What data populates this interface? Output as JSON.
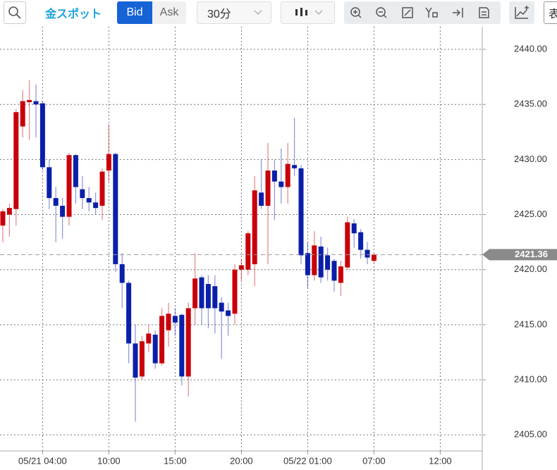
{
  "toolbar": {
    "instrument": "金スポット",
    "bid": "Bid",
    "ask": "Ask",
    "interval": "30分",
    "cut_button": "表"
  },
  "chart_data": {
    "type": "candlestick",
    "categories": [
      null,
      null,
      null,
      null,
      null,
      null,
      "05/21 04:00",
      null,
      null,
      null,
      null,
      null,
      null,
      null,
      null,
      null,
      "10:00",
      null,
      null,
      null,
      null,
      null,
      null,
      null,
      null,
      null,
      "15:00",
      null,
      null,
      null,
      null,
      null,
      null,
      null,
      null,
      null,
      "20:00",
      null,
      null,
      null,
      null,
      null,
      null,
      null,
      null,
      null,
      "05/22 01:00",
      null,
      null,
      null,
      null,
      null,
      null,
      null,
      null,
      null,
      "07:00",
      null,
      null,
      null,
      null,
      null,
      null,
      null,
      null,
      null,
      "12:00"
    ],
    "open": [
      2424,
      2425.0,
      2425.5,
      2433,
      2435.2,
      2435.3,
      2435.1,
      2429.3,
      2426.5,
      2425.8,
      2424.8,
      2430.4,
      2427.3,
      2426.5,
      2426.1,
      2425.8,
      2429,
      2430.5,
      2420.5,
      2418.8,
      2413.3,
      2410.3,
      2413.3,
      2414.1,
      2411.5,
      2414.5,
      2415.8,
      2415.9,
      2410.3,
      2416.5,
      2419.3,
      2418.7,
      2418.5,
      2417,
      2416.3,
      2416,
      2420,
      2420,
      2420.5,
      2427,
      2425.8,
      2429,
      2428,
      2427.5,
      2429.5,
      2429.2,
      2421.5,
      2419.5,
      2422.1,
      2421.3,
      2420.8,
      2418.8,
      2420.2,
      2424.2,
      2423.4,
      2421.8,
      2420.8,
      null,
      null,
      null,
      null,
      null,
      null,
      null,
      null,
      null,
      null
    ],
    "high": [
      2425.5,
      2426,
      2434.6,
      2436.3,
      2437.2,
      2436.8,
      2435.3,
      2430,
      2427.5,
      2426.5,
      2430.6,
      2430.5,
      2428.5,
      2427.5,
      2427,
      2429.2,
      2433.2,
      2430.6,
      2421.5,
      2419,
      2415,
      2414,
      2415,
      2414.5,
      2416.5,
      2417,
      2416.5,
      2416,
      2417,
      2421.5,
      2419.5,
      2419.5,
      2419.5,
      2417.5,
      2417,
      2420.5,
      2421,
      2423.5,
      2428.5,
      2430,
      2431.5,
      2430,
      2431,
      2431.5,
      2433.8,
      2429.5,
      2422.5,
      2423.5,
      2423,
      2422,
      2421,
      2420.8,
      2424.8,
      2424.6,
      2423.7,
      2422.5,
      2421.5,
      null,
      null,
      null,
      null,
      null,
      null,
      null,
      null,
      null,
      null
    ],
    "low": [
      2422.5,
      2423,
      2424,
      2432,
      2431.8,
      2432,
      2429,
      2425.5,
      2422.5,
      2422.8,
      2424,
      2426,
      2425.5,
      2425.3,
      2425,
      2424.5,
      2428,
      2419.8,
      2416.5,
      2411.5,
      2406.2,
      2410,
      2412.5,
      2411,
      2411.3,
      2413,
      2414,
      2409.5,
      2408.5,
      2415,
      2415,
      2414.7,
      2414.2,
      2411.9,
      2414,
      2415,
      2419,
      2419.5,
      2418.5,
      2425.5,
      2420.5,
      2424.5,
      2426,
      2426,
      2428.5,
      2420.5,
      2418.3,
      2419,
      2418.8,
      2419,
      2418,
      2417.6,
      2420,
      2422,
      2421,
      2420.5,
      2420.6,
      null,
      null,
      null,
      null,
      null,
      null,
      null,
      null,
      null,
      null
    ],
    "close": [
      2425.3,
      2425.6,
      2434.3,
      2435.3,
      2435.4,
      2435.0,
      2429.3,
      2426.5,
      2425.8,
      2424.8,
      2430.4,
      2427.5,
      2426.5,
      2426.1,
      2425.6,
      2428.9,
      2430.5,
      2420.5,
      2418.8,
      2413.3,
      2410.2,
      2413.5,
      2414.2,
      2411.5,
      2415.8,
      2416,
      2415.2,
      2410.3,
      2416.5,
      2419.2,
      2416.5,
      2416.5,
      2416.5,
      2416.2,
      2415.8,
      2420,
      2420.4,
      2423.3,
      2427.2,
      2425.8,
      2429,
      2428,
      2427.5,
      2429.6,
      2429.2,
      2421.3,
      2419.5,
      2422.2,
      2419.3,
      2420,
      2419,
      2420.3,
      2424.3,
      2423.3,
      2421.8,
      2421.1,
      2421.36,
      null,
      null,
      null,
      null,
      null,
      null,
      null,
      null,
      null,
      null
    ],
    "up_color": "#c8000a",
    "down_color": "#0a1fa8",
    "ylim": [
      2403.54,
      2442.05
    ],
    "yticks": [
      {
        "value": 2405,
        "label": "2405.00"
      },
      {
        "value": 2410,
        "label": "2410.00"
      },
      {
        "value": 2415,
        "label": "2415.00"
      },
      {
        "value": 2420,
        "label": "2420.00"
      },
      {
        "value": 2425,
        "label": "2425.00"
      },
      {
        "value": 2430,
        "label": "2430.00"
      },
      {
        "value": 2435,
        "label": "2435.00"
      },
      {
        "value": 2440,
        "label": "2440.00"
      }
    ],
    "current_price": 2421.36,
    "grid": true
  }
}
